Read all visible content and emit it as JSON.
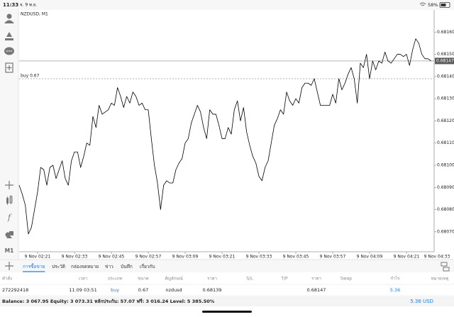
{
  "status_bar": {
    "time": "11:33",
    "date": "จ. 9 พ.ย.",
    "battery": "58%"
  },
  "toolbar": {
    "timeframe": "M1"
  },
  "chart_data": {
    "type": "line",
    "title": "NZDUSD, M1",
    "color": "#000000",
    "x": [
      "9 Nov 02:15",
      "9 Nov 02:16",
      "9 Nov 02:17",
      "9 Nov 02:18",
      "9 Nov 02:19",
      "9 Nov 02:20",
      "9 Nov 02:21",
      "9 Nov 02:22",
      "9 Nov 02:23",
      "9 Nov 02:24",
      "9 Nov 02:25",
      "9 Nov 02:26",
      "9 Nov 02:27",
      "9 Nov 02:28",
      "9 Nov 02:29",
      "9 Nov 02:30",
      "9 Nov 02:31",
      "9 Nov 02:32",
      "9 Nov 02:33",
      "9 Nov 02:34",
      "9 Nov 02:35",
      "9 Nov 02:36",
      "9 Nov 02:37",
      "9 Nov 02:38",
      "9 Nov 02:39",
      "9 Nov 02:40",
      "9 Nov 02:41",
      "9 Nov 02:42",
      "9 Nov 02:43",
      "9 Nov 02:44",
      "9 Nov 02:45",
      "9 Nov 02:46",
      "9 Nov 02:47",
      "9 Nov 02:48",
      "9 Nov 02:49",
      "9 Nov 02:50",
      "9 Nov 02:51",
      "9 Nov 02:52",
      "9 Nov 02:53",
      "9 Nov 02:54",
      "9 Nov 02:55",
      "9 Nov 02:56",
      "9 Nov 02:57",
      "9 Nov 02:58",
      "9 Nov 02:59",
      "9 Nov 03:00",
      "9 Nov 03:01",
      "9 Nov 03:02",
      "9 Nov 03:03",
      "9 Nov 03:04",
      "9 Nov 03:05",
      "9 Nov 03:06",
      "9 Nov 03:07",
      "9 Nov 03:08",
      "9 Nov 03:09",
      "9 Nov 03:10",
      "9 Nov 03:11",
      "9 Nov 03:12",
      "9 Nov 03:13",
      "9 Nov 03:14",
      "9 Nov 03:15",
      "9 Nov 03:16",
      "9 Nov 03:17",
      "9 Nov 03:18",
      "9 Nov 03:19",
      "9 Nov 03:20",
      "9 Nov 03:21",
      "9 Nov 03:22",
      "9 Nov 03:23",
      "9 Nov 03:24",
      "9 Nov 03:25",
      "9 Nov 03:26",
      "9 Nov 03:27",
      "9 Nov 03:28",
      "9 Nov 03:29",
      "9 Nov 03:30",
      "9 Nov 03:31",
      "9 Nov 03:32",
      "9 Nov 03:33",
      "9 Nov 03:34",
      "9 Nov 03:35",
      "9 Nov 03:36",
      "9 Nov 03:37",
      "9 Nov 03:38",
      "9 Nov 03:39",
      "9 Nov 03:40",
      "9 Nov 03:41",
      "9 Nov 03:42",
      "9 Nov 03:43",
      "9 Nov 03:44",
      "9 Nov 03:45",
      "9 Nov 03:46",
      "9 Nov 03:47",
      "9 Nov 03:48",
      "9 Nov 03:49",
      "9 Nov 03:50",
      "9 Nov 03:51",
      "9 Nov 03:52",
      "9 Nov 03:53",
      "9 Nov 03:54",
      "9 Nov 03:55",
      "9 Nov 03:56",
      "9 Nov 03:57",
      "9 Nov 03:58",
      "9 Nov 03:59",
      "9 Nov 04:00",
      "9 Nov 04:01",
      "9 Nov 04:02",
      "9 Nov 04:03",
      "9 Nov 04:04",
      "9 Nov 04:05",
      "9 Nov 04:06",
      "9 Nov 04:07",
      "9 Nov 04:08",
      "9 Nov 04:09",
      "9 Nov 04:10",
      "9 Nov 04:11",
      "9 Nov 04:12",
      "9 Nov 04:13",
      "9 Nov 04:14",
      "9 Nov 04:15",
      "9 Nov 04:16",
      "9 Nov 04:17",
      "9 Nov 04:18",
      "9 Nov 04:19",
      "9 Nov 04:20",
      "9 Nov 04:21",
      "9 Nov 04:22",
      "9 Nov 04:23",
      "9 Nov 04:24",
      "9 Nov 04:25",
      "9 Nov 04:26",
      "9 Nov 04:27",
      "9 Nov 04:28",
      "9 Nov 04:29"
    ],
    "values": [
      0.68091,
      0.68087,
      0.68082,
      0.68069,
      0.68072,
      0.6808,
      0.68088,
      0.68099,
      0.68098,
      0.68091,
      0.68099,
      0.681,
      0.68094,
      0.68098,
      0.68102,
      0.68094,
      0.68091,
      0.68102,
      0.68106,
      0.68106,
      0.68099,
      0.68104,
      0.6811,
      0.68109,
      0.68122,
      0.68117,
      0.68127,
      0.68123,
      0.68124,
      0.68125,
      0.68128,
      0.68127,
      0.68135,
      0.68131,
      0.68126,
      0.68131,
      0.68128,
      0.68133,
      0.68131,
      0.68127,
      0.68128,
      0.68125,
      0.68125,
      0.68112,
      0.681,
      0.68092,
      0.6808,
      0.68091,
      0.68093,
      0.68092,
      0.68092,
      0.68098,
      0.68101,
      0.68103,
      0.6811,
      0.68112,
      0.68119,
      0.68123,
      0.68127,
      0.68124,
      0.68117,
      0.68112,
      0.68125,
      0.68123,
      0.68123,
      0.68118,
      0.68112,
      0.68112,
      0.68117,
      0.68114,
      0.68125,
      0.68129,
      0.6812,
      0.68126,
      0.68115,
      0.68109,
      0.68104,
      0.68101,
      0.68095,
      0.68093,
      0.68099,
      0.68102,
      0.6811,
      0.68118,
      0.68121,
      0.68125,
      0.68123,
      0.68133,
      0.68129,
      0.68127,
      0.6813,
      0.68128,
      0.68135,
      0.68137,
      0.68137,
      0.68136,
      0.68139,
      0.68133,
      0.68127,
      0.68127,
      0.68127,
      0.68127,
      0.68132,
      0.68128,
      0.68139,
      0.68134,
      0.68137,
      0.68141,
      0.68144,
      0.68139,
      0.68128,
      0.68146,
      0.68144,
      0.6815,
      0.68139,
      0.68147,
      0.68143,
      0.68147,
      0.68146,
      0.68151,
      0.68147,
      0.68146,
      0.68148,
      0.6815,
      0.6815,
      0.68149,
      0.6815,
      0.68145,
      0.68152,
      0.68157,
      0.68155,
      0.6815,
      0.68148,
      0.68148,
      0.68147
    ],
    "xlim": [
      "9 Nov 02:15",
      "9 Nov 04:30"
    ],
    "xticks": [
      "9 Nov 02:21",
      "9 Nov 02:33",
      "9 Nov 02:45",
      "9 Nov 02:57",
      "9 Nov 03:09",
      "9 Nov 03:21",
      "9 Nov 03:33",
      "9 Nov 03:45",
      "9 Nov 03:57",
      "9 Nov 04:09",
      "9 Nov 04:21",
      "9 Nov 04:33"
    ],
    "ylim": [
      0.68061,
      0.6817
    ],
    "yticks": [
      {
        "value": 0.6807,
        "label": "0.68070"
      },
      {
        "value": 0.6808,
        "label": "0.68080"
      },
      {
        "value": 0.6809,
        "label": "0.68090"
      },
      {
        "value": 0.681,
        "label": "0.68100"
      },
      {
        "value": 0.6811,
        "label": "0.68110"
      },
      {
        "value": 0.6812,
        "label": "0.68120"
      },
      {
        "value": 0.6813,
        "label": "0.68130"
      },
      {
        "value": 0.6814,
        "label": "0.68140"
      },
      {
        "value": 0.6815,
        "label": "0.68150"
      },
      {
        "value": 0.6816,
        "label": "0.68160"
      }
    ],
    "current_price": 0.68147,
    "order_line": {
      "label": "buy 0.67",
      "value": 0.68139
    }
  },
  "trade_panel": {
    "tabs": [
      "การซื้อขาย",
      "ประวัติ",
      "กล่องจดหมาย",
      "ข่าว",
      "บันทึก",
      "เกี่ยวกับ"
    ],
    "active_tab": 0,
    "table": {
      "columns": [
        "คำสั่ง",
        "เวลา",
        "ประเภท",
        "ขนาด",
        "สัญลักษณ์",
        "ราคา",
        "S/L",
        "T/P",
        "ราคา",
        "Swap",
        "กำไร",
        "หมายเหตุ"
      ],
      "rows": [
        [
          "272292418",
          "11.09 03:51",
          "buy",
          "0.67",
          "nzdusd",
          "0.68139",
          null,
          null,
          "0.68147",
          null,
          "5.36",
          null
        ]
      ]
    },
    "summary": "Balance: 3 067.95 Equity: 3 073.31 หลักประกัน: 57.07 ฟรี: 3 016.24 Level: 5 385.50%",
    "total_profit": "5.36 USD"
  }
}
